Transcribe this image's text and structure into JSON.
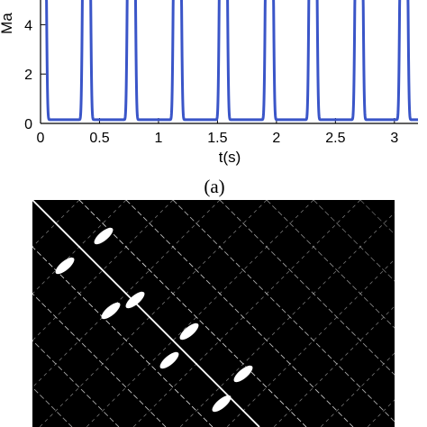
{
  "chart_data": [
    {
      "type": "line",
      "ylabel": "Ma",
      "xlabel": "t(s)",
      "caption": "(a)",
      "xlim": [
        0,
        3.2
      ],
      "ylim": [
        0,
        5.0
      ],
      "x_ticks": [
        {
          "value": 0,
          "label": "0"
        },
        {
          "value": 0.5,
          "label": "0.5"
        },
        {
          "value": 1,
          "label": "1"
        },
        {
          "value": 1.5,
          "label": "1.5"
        },
        {
          "value": 2,
          "label": "2"
        },
        {
          "value": 2.5,
          "label": "2.5"
        },
        {
          "value": 3,
          "label": "3"
        }
      ],
      "y_ticks": [
        {
          "value": 0,
          "label": "0"
        },
        {
          "value": 2,
          "label": "2"
        },
        {
          "value": 4,
          "label": "4"
        }
      ],
      "series": [
        {
          "color": "#3a55c8",
          "baseline": 0.15,
          "pulse_centers": [
            0.015,
            0.39,
            0.77,
            1.16,
            1.55,
            1.94,
            2.31,
            2.7,
            3.08
          ],
          "pulse_half_width": 0.035
        }
      ]
    },
    {
      "type": "heatmap",
      "description": "binary recurrence plot",
      "colors": {
        "background": "#000000",
        "points": "#ffffff"
      }
    }
  ]
}
